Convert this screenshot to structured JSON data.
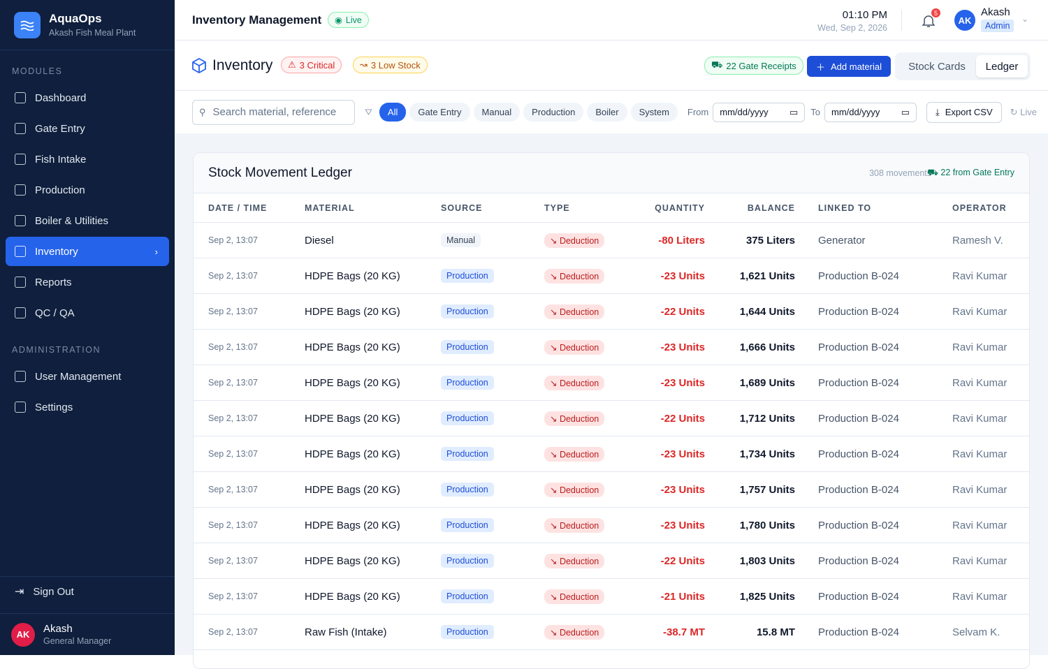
{
  "brand": {
    "name": "AquaOps",
    "subtitle": "Akash Fish Meal Plant"
  },
  "sidebar": {
    "sections": [
      {
        "heading": "MODULES",
        "items": [
          {
            "label": "Dashboard"
          },
          {
            "label": "Gate Entry"
          },
          {
            "label": "Fish Intake"
          },
          {
            "label": "Production"
          },
          {
            "label": "Boiler & Utilities"
          },
          {
            "label": "Inventory",
            "active": true
          },
          {
            "label": "Reports"
          },
          {
            "label": "QC / QA"
          }
        ]
      },
      {
        "heading": "ADMINISTRATION",
        "items": [
          {
            "label": "User Management"
          },
          {
            "label": "Settings"
          }
        ]
      }
    ],
    "sign_out": "Sign Out",
    "user": {
      "initials": "AK",
      "name": "Akash",
      "role": "General Manager"
    }
  },
  "header": {
    "title": "Inventory Management",
    "live": "Live",
    "time": "01:10 PM",
    "date": "Wed, Sep 2, 2026",
    "notifications": 5,
    "user_initials": "AK",
    "user_name": "Akash",
    "user_role": "Admin"
  },
  "toolbar": {
    "title": "Inventory",
    "critical": "3 Critical",
    "low_stock": "3 Low Stock",
    "gate_receipts": "22 Gate Receipts",
    "add": "Add material",
    "tabs": [
      "Stock Cards",
      "Ledger"
    ]
  },
  "filters": {
    "search_placeholder": "Search material, reference",
    "chips": [
      "All",
      "Gate Entry",
      "Manual",
      "Production",
      "Boiler",
      "System"
    ],
    "from": "From",
    "to": "To",
    "from_placeholder": "mm/dd/yyyy",
    "to_placeholder": "mm/dd/yyyy",
    "export": "Export CSV",
    "live": "Live"
  },
  "ledger": {
    "title": "Stock Movement Ledger",
    "count": "308 movements",
    "gate": "22 from Gate Entry",
    "columns": [
      "DATE / TIME",
      "MATERIAL",
      "SOURCE",
      "TYPE",
      "QUANTITY",
      "BALANCE",
      "LINKED TO",
      "OPERATOR"
    ],
    "rows": [
      [
        "Sep 2, 13:07",
        "Diesel",
        "Manual",
        "Deduction",
        "-80 Liters",
        "375 Liters",
        "Generator",
        "Ramesh V."
      ],
      [
        "Sep 2, 13:07",
        "HDPE Bags (20 KG)",
        "Production",
        "Deduction",
        "-23 Units",
        "1,621 Units",
        "Production B-024",
        "Ravi Kumar"
      ],
      [
        "Sep 2, 13:07",
        "HDPE Bags (20 KG)",
        "Production",
        "Deduction",
        "-22 Units",
        "1,644 Units",
        "Production B-024",
        "Ravi Kumar"
      ],
      [
        "Sep 2, 13:07",
        "HDPE Bags (20 KG)",
        "Production",
        "Deduction",
        "-23 Units",
        "1,666 Units",
        "Production B-024",
        "Ravi Kumar"
      ],
      [
        "Sep 2, 13:07",
        "HDPE Bags (20 KG)",
        "Production",
        "Deduction",
        "-23 Units",
        "1,689 Units",
        "Production B-024",
        "Ravi Kumar"
      ],
      [
        "Sep 2, 13:07",
        "HDPE Bags (20 KG)",
        "Production",
        "Deduction",
        "-22 Units",
        "1,712 Units",
        "Production B-024",
        "Ravi Kumar"
      ],
      [
        "Sep 2, 13:07",
        "HDPE Bags (20 KG)",
        "Production",
        "Deduction",
        "-23 Units",
        "1,734 Units",
        "Production B-024",
        "Ravi Kumar"
      ],
      [
        "Sep 2, 13:07",
        "HDPE Bags (20 KG)",
        "Production",
        "Deduction",
        "-23 Units",
        "1,757 Units",
        "Production B-024",
        "Ravi Kumar"
      ],
      [
        "Sep 2, 13:07",
        "HDPE Bags (20 KG)",
        "Production",
        "Deduction",
        "-23 Units",
        "1,780 Units",
        "Production B-024",
        "Ravi Kumar"
      ],
      [
        "Sep 2, 13:07",
        "HDPE Bags (20 KG)",
        "Production",
        "Deduction",
        "-22 Units",
        "1,803 Units",
        "Production B-024",
        "Ravi Kumar"
      ],
      [
        "Sep 2, 13:07",
        "HDPE Bags (20 KG)",
        "Production",
        "Deduction",
        "-21 Units",
        "1,825 Units",
        "Production B-024",
        "Ravi Kumar"
      ],
      [
        "Sep 2, 13:07",
        "Raw Fish (Intake)",
        "Production",
        "Deduction",
        "-38.7 MT",
        "15.8 MT",
        "Production B-024",
        "Selvam K."
      ]
    ]
  }
}
